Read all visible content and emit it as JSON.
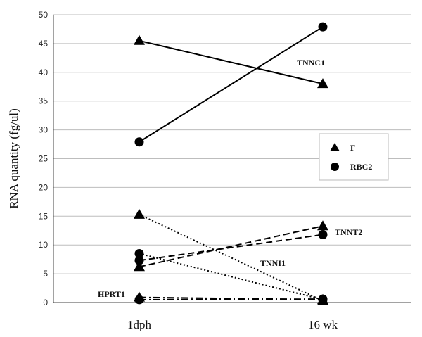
{
  "chart_data": {
    "type": "line",
    "ylabel": "RNA quantity (fg/ul)",
    "ylim": [
      0,
      50
    ],
    "yticks": [
      "0",
      "5",
      "10",
      "15",
      "20",
      "25",
      "30",
      "35",
      "40",
      "45",
      "50"
    ],
    "categories": [
      "1dph",
      "16 wk"
    ],
    "grid": "horizontal",
    "legend": {
      "placement": "right",
      "entries": [
        {
          "marker": "triangle",
          "label": "F"
        },
        {
          "marker": "circle",
          "label": "RBC2"
        }
      ]
    },
    "series": [
      {
        "label": "TNNC1",
        "group": "F",
        "marker": "triangle",
        "style": "solid",
        "values": [
          45.5,
          38.0
        ]
      },
      {
        "label": "TNNC1",
        "group": "RBC2",
        "marker": "circle",
        "style": "solid",
        "values": [
          27.9,
          47.9
        ]
      },
      {
        "label": "TNNT2",
        "group": "F",
        "marker": "triangle",
        "style": "dashed",
        "values": [
          6.2,
          13.3
        ]
      },
      {
        "label": "TNNT2",
        "group": "RBC2",
        "marker": "circle",
        "style": "dashed",
        "values": [
          7.3,
          11.8
        ]
      },
      {
        "label": "TNNI1",
        "group": "F",
        "marker": "triangle",
        "style": "dotted",
        "values": [
          15.3,
          0.3
        ]
      },
      {
        "label": "TNNI1",
        "group": "RBC2",
        "marker": "circle",
        "style": "dotted",
        "values": [
          8.5,
          0.5
        ]
      },
      {
        "label": "HPRT1",
        "group": "F",
        "marker": "triangle",
        "style": "dashdot",
        "values": [
          0.9,
          0.5
        ]
      },
      {
        "label": "HPRT1",
        "group": "RBC2",
        "marker": "circle",
        "style": "dashdot",
        "values": [
          0.5,
          0.6
        ]
      }
    ],
    "annotations": [
      "TNNC1",
      "TNNT2",
      "TNNI1",
      "HPRT1"
    ]
  }
}
